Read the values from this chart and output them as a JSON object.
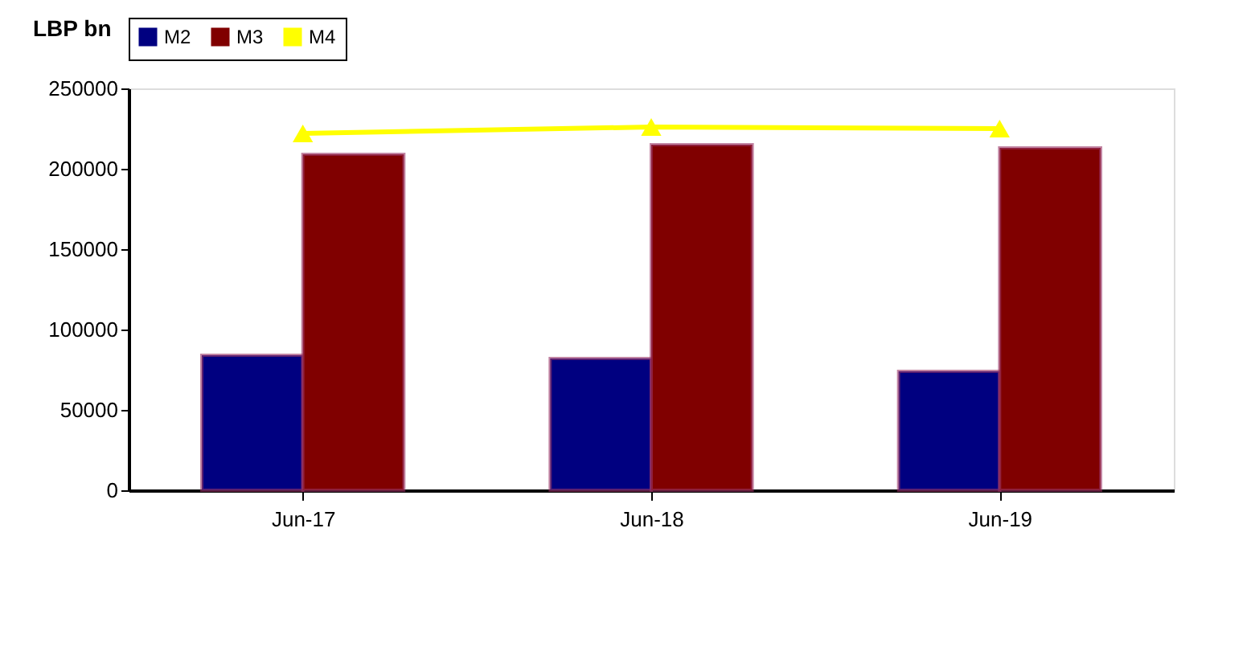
{
  "chart_data": {
    "type": "bar",
    "ylabel": "LBP bn",
    "categories": [
      "Jun-17",
      "Jun-18",
      "Jun-19"
    ],
    "series": [
      {
        "name": "M2",
        "color": "#000080",
        "values": [
          84000,
          82000,
          74000
        ]
      },
      {
        "name": "M3",
        "color": "#800000",
        "values": [
          209000,
          215000,
          213000
        ]
      },
      {
        "name": "M4",
        "type": "line",
        "color": "#ffff00",
        "marker": "triangle",
        "values": [
          222000,
          226000,
          225000
        ]
      }
    ],
    "ylim": [
      0,
      250000
    ],
    "yticks": [
      0,
      50000,
      100000,
      150000,
      200000,
      250000
    ],
    "grid": false,
    "legend": "top"
  }
}
